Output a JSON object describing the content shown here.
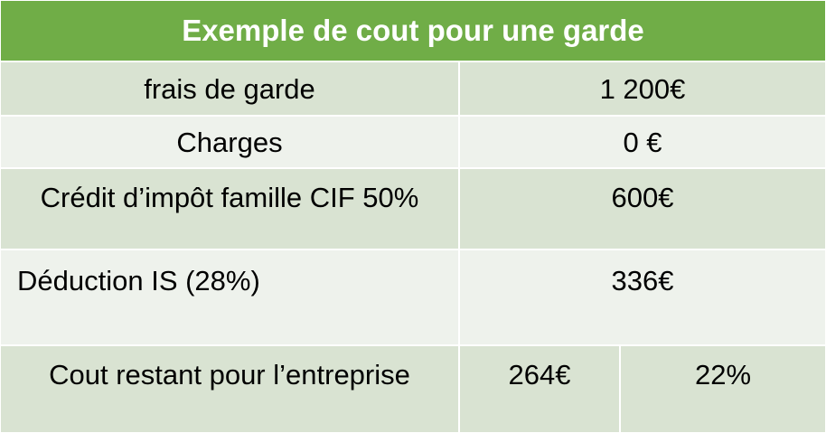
{
  "table": {
    "title": "Exemple de cout pour une garde",
    "rows": [
      {
        "label": "frais de garde",
        "value": "1 200€"
      },
      {
        "label": "Charges",
        "value": "0 €"
      },
      {
        "label": "Crédit d’impôt famille CIF 50%",
        "value": "600€"
      },
      {
        "label": "Déduction IS (28%)",
        "value": "336€"
      }
    ],
    "last_row": {
      "label": "Cout restant pour l’entreprise",
      "value": "264€",
      "percent": "22%"
    }
  },
  "colors": {
    "header": "#70ad47",
    "band_dark": "#d9e3d2",
    "band_light": "#eef2ec",
    "border": "#ffffff"
  }
}
